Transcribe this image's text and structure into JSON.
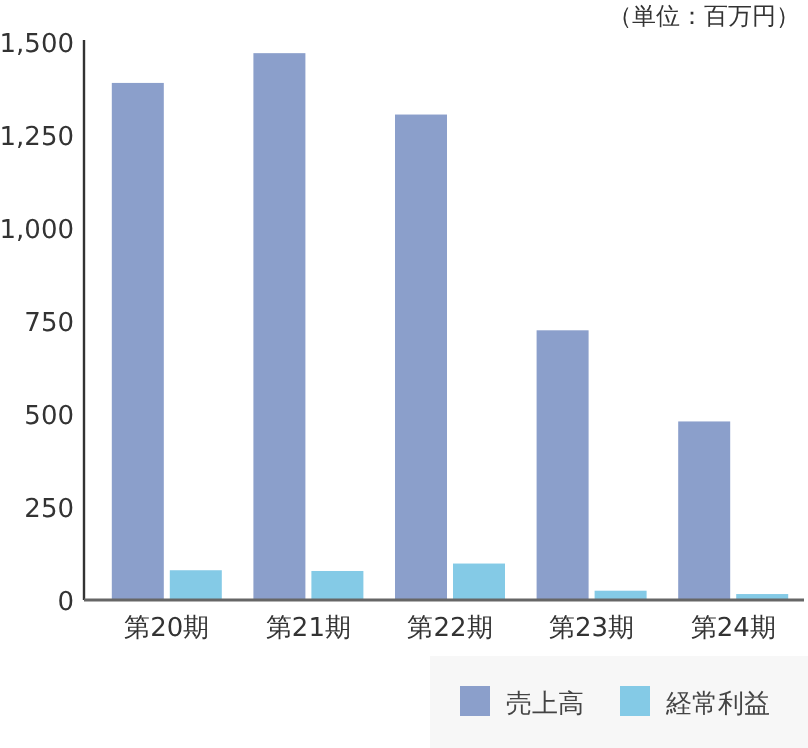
{
  "chart_data": {
    "type": "bar",
    "annotations": [
      "（単位：百万円）"
    ],
    "categories": [
      "第20期",
      "第21期",
      "第22期",
      "第23期",
      "第24期"
    ],
    "series": [
      {
        "name": "売上高",
        "color": "#8b9fcb",
        "values": [
          1390,
          1470,
          1305,
          725,
          480
        ]
      },
      {
        "name": "経常利益",
        "color": "#84cae6",
        "values": [
          80,
          78,
          98,
          25,
          16
        ]
      }
    ],
    "ylim": [
      0,
      1500
    ],
    "yticks": [
      {
        "value": 0,
        "label": "0"
      },
      {
        "value": 250,
        "label": "250"
      },
      {
        "value": 500,
        "label": "500"
      },
      {
        "value": 750,
        "label": "750"
      },
      {
        "value": 1000,
        "label": "1,000"
      },
      {
        "value": 1250,
        "label": "1,250"
      },
      {
        "value": 1500,
        "label": "1,500"
      }
    ],
    "grid": false,
    "legend": "bottom right"
  }
}
